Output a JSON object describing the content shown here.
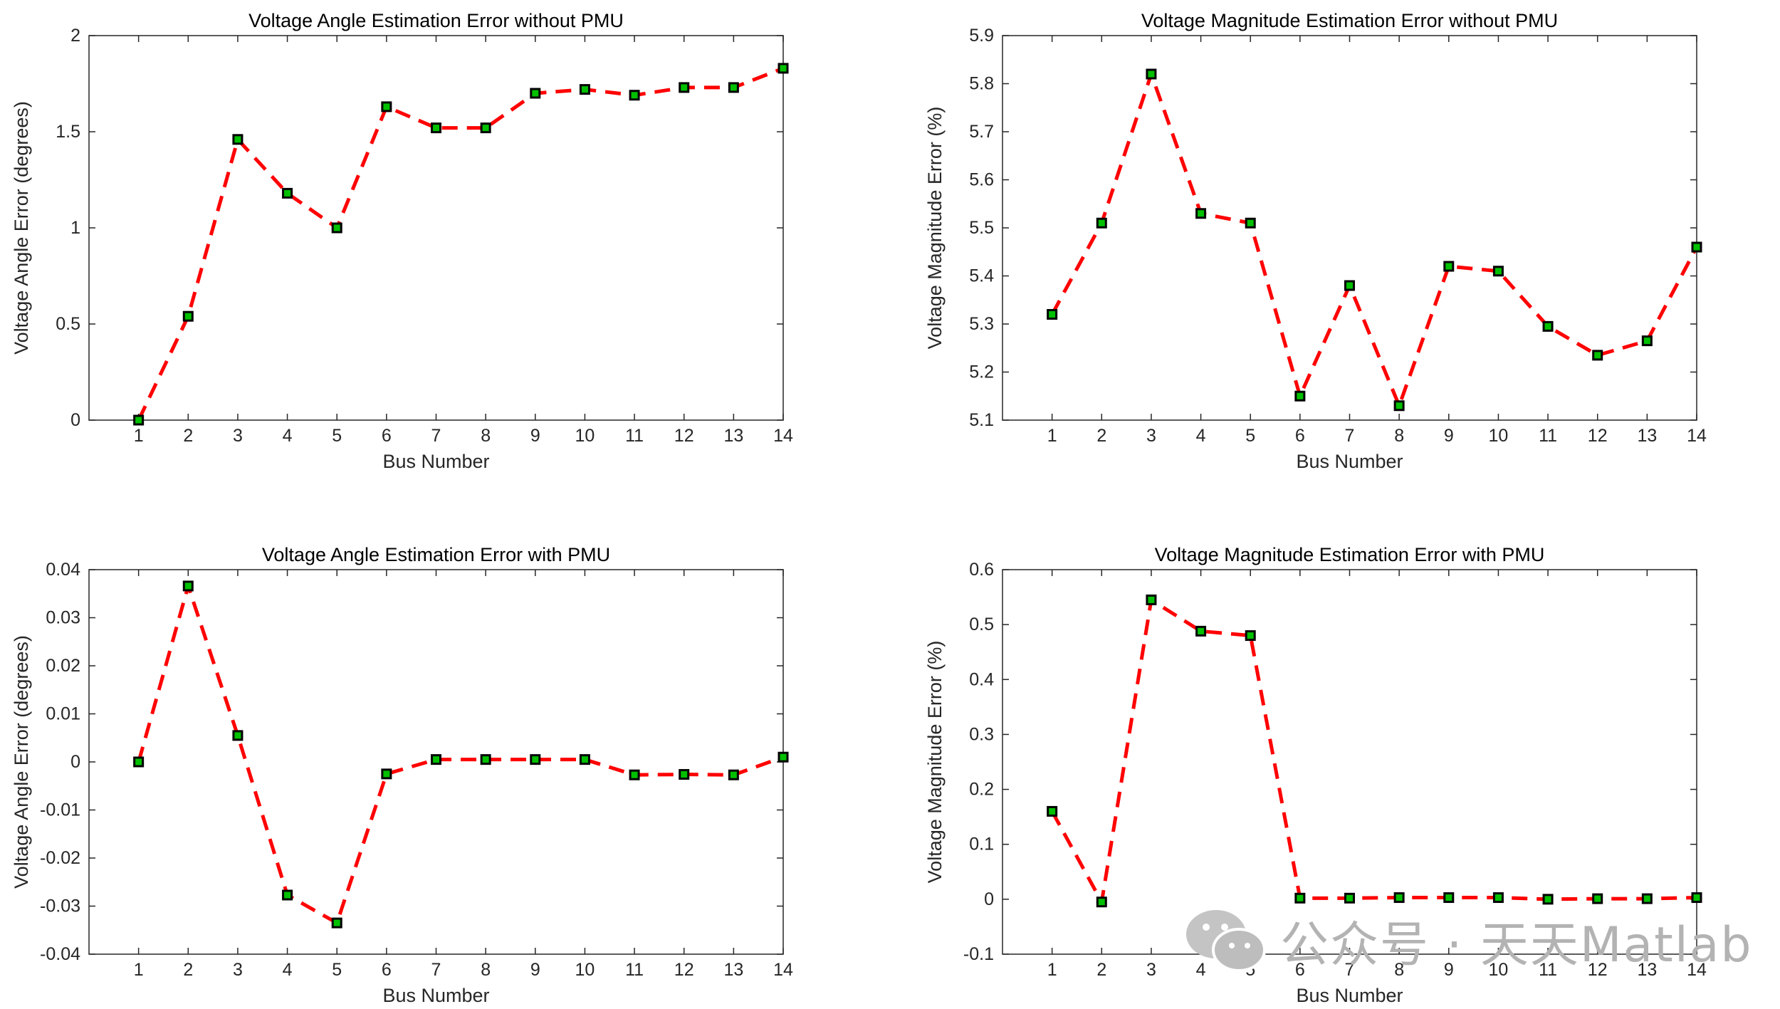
{
  "chart_data": [
    {
      "type": "line",
      "title": "Voltage Angle Estimation Error without PMU",
      "xlabel": "Bus Number",
      "ylabel": "Voltage Angle Error (degrees)",
      "xlim": [
        0,
        14
      ],
      "ylim": [
        0,
        2
      ],
      "xticks": [
        1,
        2,
        3,
        4,
        5,
        6,
        7,
        8,
        9,
        10,
        11,
        12,
        13,
        14
      ],
      "yticks": [
        0,
        0.5,
        1,
        1.5,
        2
      ],
      "ytick_labels": [
        "0",
        "0.5",
        "1",
        "1.5",
        "2"
      ],
      "x": [
        1,
        2,
        3,
        4,
        5,
        6,
        7,
        8,
        9,
        10,
        11,
        12,
        13,
        14
      ],
      "values": [
        0,
        0.54,
        1.46,
        1.18,
        1.0,
        1.63,
        1.52,
        1.52,
        1.7,
        1.72,
        1.69,
        1.73,
        1.73,
        1.83
      ],
      "line_color": "#ff0000",
      "marker_face": "#00c000",
      "marker_edge": "#000000"
    },
    {
      "type": "line",
      "title": "Voltage Magnitude Estimation Error without PMU",
      "xlabel": "Bus Number",
      "ylabel": "Voltage Magnitude Error (%)",
      "xlim": [
        0,
        14
      ],
      "ylim": [
        5.1,
        5.9
      ],
      "xticks": [
        1,
        2,
        3,
        4,
        5,
        6,
        7,
        8,
        9,
        10,
        11,
        12,
        13,
        14
      ],
      "yticks": [
        5.1,
        5.2,
        5.3,
        5.4,
        5.5,
        5.6,
        5.7,
        5.8,
        5.9
      ],
      "ytick_labels": [
        "5.1",
        "5.2",
        "5.3",
        "5.4",
        "5.5",
        "5.6",
        "5.7",
        "5.8",
        "5.9"
      ],
      "x": [
        1,
        2,
        3,
        4,
        5,
        6,
        7,
        8,
        9,
        10,
        11,
        12,
        13,
        14
      ],
      "values": [
        5.32,
        5.51,
        5.82,
        5.53,
        5.51,
        5.15,
        5.38,
        5.13,
        5.42,
        5.41,
        5.295,
        5.235,
        5.265,
        5.46
      ],
      "line_color": "#ff0000",
      "marker_face": "#00c000",
      "marker_edge": "#000000"
    },
    {
      "type": "line",
      "title": "Voltage Angle Estimation Error with PMU",
      "xlabel": "Bus Number",
      "ylabel": "Voltage Angle Error (degrees)",
      "xlim": [
        0,
        14
      ],
      "ylim": [
        -0.04,
        0.04
      ],
      "xticks": [
        1,
        2,
        3,
        4,
        5,
        6,
        7,
        8,
        9,
        10,
        11,
        12,
        13,
        14
      ],
      "yticks": [
        -0.04,
        -0.03,
        -0.02,
        -0.01,
        0,
        0.01,
        0.02,
        0.03,
        0.04
      ],
      "ytick_labels": [
        "-0.04",
        "-0.03",
        "-0.02",
        "-0.01",
        "0",
        "0.01",
        "0.02",
        "0.03",
        "0.04"
      ],
      "x": [
        1,
        2,
        3,
        4,
        5,
        6,
        7,
        8,
        9,
        10,
        11,
        12,
        13,
        14
      ],
      "values": [
        0,
        0.0366,
        0.0055,
        -0.0277,
        -0.0335,
        -0.0025,
        0.0005,
        0.0005,
        0.0005,
        0.0005,
        -0.0027,
        -0.0026,
        -0.0027,
        0.001
      ],
      "line_color": "#ff0000",
      "marker_face": "#00c000",
      "marker_edge": "#000000"
    },
    {
      "type": "line",
      "title": "Voltage Magnitude Estimation Error with PMU",
      "xlabel": "Bus Number",
      "ylabel": "Voltage Magnitude Error (%)",
      "xlim": [
        0,
        14
      ],
      "ylim": [
        -0.1,
        0.6
      ],
      "xticks": [
        1,
        2,
        3,
        4,
        5,
        6,
        7,
        8,
        9,
        10,
        11,
        12,
        13,
        14
      ],
      "yticks": [
        -0.1,
        0,
        0.1,
        0.2,
        0.3,
        0.4,
        0.5,
        0.6
      ],
      "ytick_labels": [
        "-0.1",
        "0",
        "0.1",
        "0.2",
        "0.3",
        "0.4",
        "0.5",
        "0.6"
      ],
      "x": [
        1,
        2,
        3,
        4,
        5,
        6,
        7,
        8,
        9,
        10,
        11,
        12,
        13,
        14
      ],
      "values": [
        0.16,
        -0.005,
        0.545,
        0.488,
        0.48,
        0.002,
        0.002,
        0.003,
        0.003,
        0.003,
        0.0,
        0.001,
        0.001,
        0.003
      ],
      "line_color": "#ff0000",
      "marker_face": "#00c000",
      "marker_edge": "#000000"
    }
  ],
  "watermark": {
    "text": "公众号 · 天天Matlab",
    "icon": "wechat-icon",
    "color": "#b3b3b3"
  }
}
